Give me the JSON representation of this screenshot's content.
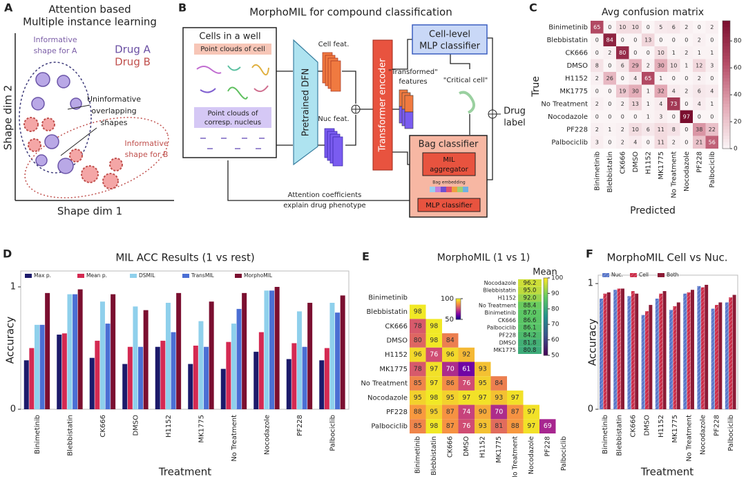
{
  "panel_labels": [
    "A",
    "B",
    "C",
    "D",
    "E",
    "F"
  ],
  "diagram_a": {
    "title_lines": [
      "Attention based",
      "Multiple instance learning"
    ],
    "informative_a": [
      "Informative",
      "shape for A"
    ],
    "drug_a": "Drug A",
    "drug_b": "Drug B",
    "uninformative": [
      "Uninformative",
      "overlapping",
      "shapes"
    ],
    "informative_b": [
      "Informative",
      "shape for B"
    ],
    "y_axis": "Shape dim 2",
    "x_axis": "Shape dim 1"
  },
  "diagram_b": {
    "title": "MorphoMIL for compound classification",
    "cells_box": "Cells in a well",
    "cell_pc": "Point clouds of cell",
    "nuc_pc": [
      "Point clouds of",
      "corresp. nucleus"
    ],
    "dfn": "Pretrained DFN",
    "cell_feat": "Cell feat.",
    "nuc_feat": "Nuc feat.",
    "transformer": "Transformer encoder",
    "transformed": [
      "\"Transformed\"",
      "features"
    ],
    "cell_mlp": [
      "Cell-level",
      "MLP classifier"
    ],
    "critical": "\"Critical cell\"",
    "drug_label": [
      "Drug",
      "label"
    ],
    "bag": "Bag classifier",
    "mil": [
      "MIL",
      "aggregator"
    ],
    "bag_embedding": "Bag embedding",
    "mlp": "MLP classifier",
    "attention": [
      "Attention coefficients",
      "explain drug phenotype"
    ]
  },
  "chart_data": [
    {
      "type": "heatmap",
      "title": "Avg confusion matrix",
      "x_label": "Predicted",
      "y_label": "True",
      "x_categories": [
        "Binimetinib",
        "Blebbistatin",
        "CK666",
        "DMSO",
        "H1152",
        "MK1775",
        "No Treatment",
        "Nocodazole",
        "PF228",
        "Palbociclib"
      ],
      "y_categories": [
        "Binimetinib",
        "Blebbistatin",
        "CK666",
        "DMSO",
        "H1152",
        "MK1775",
        "No Treatment",
        "Nocodazole",
        "PF228",
        "Palbociclib"
      ],
      "values": [
        [
          65,
          0,
          10,
          10,
          0,
          5,
          6,
          2,
          0,
          2
        ],
        [
          0,
          84,
          0,
          0,
          13,
          0,
          0,
          0,
          2,
          0
        ],
        [
          0,
          2,
          80,
          0,
          0,
          10,
          1,
          2,
          1,
          1
        ],
        [
          8,
          0,
          6,
          29,
          2,
          30,
          10,
          1,
          12,
          3
        ],
        [
          2,
          26,
          0,
          4,
          65,
          1,
          0,
          0,
          2,
          0
        ],
        [
          0,
          0,
          19,
          30,
          1,
          32,
          4,
          2,
          6,
          4
        ],
        [
          2,
          0,
          2,
          13,
          1,
          4,
          73,
          0,
          4,
          1
        ],
        [
          0,
          0,
          0,
          0,
          1,
          3,
          0,
          97,
          0,
          0
        ],
        [
          2,
          1,
          2,
          10,
          6,
          11,
          8,
          0,
          38,
          22
        ],
        [
          3,
          0,
          2,
          4,
          0,
          11,
          2,
          0,
          21,
          56
        ]
      ],
      "colorbar_lim": [
        0,
        95
      ],
      "colorbar_ticks": [
        0,
        20,
        40,
        60,
        80
      ]
    },
    {
      "type": "bar",
      "title": "MIL ACC Results (1 vs rest)",
      "x_label": "Treatment",
      "y_label": "Accuracy",
      "categories": [
        "Binimetinib",
        "Blebbistatin",
        "CK666",
        "DMSO",
        "H1152",
        "MK1775",
        "No Treatment",
        "Nocodazole",
        "PF228",
        "Palbociclib"
      ],
      "series": [
        {
          "name": "Max p.",
          "color": "#1c1a6b",
          "values": [
            0.4,
            0.61,
            0.42,
            0.37,
            0.51,
            0.37,
            0.33,
            0.47,
            0.41,
            0.4
          ]
        },
        {
          "name": "Mean p.",
          "color": "#d42a52",
          "values": [
            0.5,
            0.62,
            0.56,
            0.51,
            0.56,
            0.52,
            0.55,
            0.63,
            0.54,
            0.5
          ]
        },
        {
          "name": "DSMIL",
          "color": "#8fd0ec",
          "values": [
            0.69,
            0.94,
            0.88,
            0.84,
            0.87,
            0.72,
            0.7,
            0.97,
            0.8,
            0.87
          ]
        },
        {
          "name": "TransMIL",
          "color": "#4b6fd4",
          "values": [
            0.69,
            0.94,
            0.7,
            0.51,
            0.63,
            0.51,
            0.82,
            0.97,
            0.51,
            0.79
          ]
        },
        {
          "name": "MorphoMIL",
          "color": "#7b0f30",
          "values": [
            0.95,
            0.98,
            0.94,
            0.81,
            0.95,
            0.88,
            0.95,
            1.0,
            0.87,
            0.93
          ]
        }
      ],
      "ylim": [
        0,
        1.13
      ],
      "yticks": [
        0,
        1
      ],
      "legend": "top"
    },
    {
      "type": "triangle_heatmap",
      "title": "MorphoMIL (1 vs 1)",
      "row_categories": [
        "Binimetinib",
        "Blebbistatin",
        "CK666",
        "DMSO",
        "H1152",
        "MK1775",
        "No Treatment",
        "Nocodazole",
        "PF228",
        "Palbociclib"
      ],
      "col_categories": [
        "Binimetinib",
        "Blebbistatin",
        "CK666",
        "DMSO",
        "H1152",
        "MK1775",
        "No Treatment",
        "Nocodazole",
        "PF228",
        "Palbociclib"
      ],
      "values": [
        [],
        [
          98
        ],
        [
          78,
          98
        ],
        [
          80,
          98,
          84
        ],
        [
          96,
          76,
          96,
          92
        ],
        [
          78,
          97,
          70,
          61,
          93
        ],
        [
          85,
          97,
          86,
          76,
          95,
          84
        ],
        [
          95,
          98,
          95,
          97,
          97,
          93,
          97
        ],
        [
          88,
          95,
          87,
          74,
          90,
          70,
          87,
          97
        ],
        [
          85,
          98,
          87,
          76,
          93,
          81,
          88,
          97,
          69
        ]
      ],
      "colorbar_lim": [
        50,
        100
      ],
      "colorbar_ticks": [
        100,
        50
      ],
      "mean": {
        "title": "Mean",
        "categories": [
          "Nocodazole",
          "Blebbistatin",
          "H1152",
          "No Treatment",
          "Binimetinib",
          "CK666",
          "Palbociclib",
          "PF228",
          "DMSO",
          "MK1775"
        ],
        "values": [
          96.2,
          95.0,
          92.0,
          88.4,
          87.0,
          86.6,
          86.1,
          84.2,
          81.8,
          80.8
        ],
        "value_labels": [
          "96.2",
          "95.0",
          "92.0",
          "88.4",
          "87.0",
          "86.6",
          "86.1",
          "84.2",
          "81.8",
          "80.8"
        ],
        "colorbar_lim": [
          50,
          100
        ],
        "colorbar_ticks": [
          100,
          90,
          80,
          70,
          60,
          50
        ]
      }
    },
    {
      "type": "bar",
      "title": "MorphoMIL Cell vs Nuc.",
      "x_label": "Treatment",
      "y_label": "Accuracy",
      "categories": [
        "Binimetinib",
        "Blebbistatin",
        "CK666",
        "DMSO",
        "H1152",
        "MK1775",
        "No Treatment",
        "Nocodazole",
        "PF228",
        "Palbociclib"
      ],
      "series": [
        {
          "name": "Nuc.",
          "color": "#5b78c9",
          "hatch": true,
          "values": [
            0.88,
            0.95,
            0.9,
            0.75,
            0.88,
            0.79,
            0.92,
            0.98,
            0.8,
            0.85
          ]
        },
        {
          "name": "Cell",
          "color": "#cc2e4a",
          "hatch": true,
          "values": [
            0.92,
            0.96,
            0.94,
            0.78,
            0.92,
            0.82,
            0.93,
            0.97,
            0.83,
            0.89
          ]
        },
        {
          "name": "Both",
          "color": "#8b1a35",
          "hatch": false,
          "values": [
            0.93,
            0.96,
            0.92,
            0.83,
            0.94,
            0.85,
            0.95,
            0.99,
            0.85,
            0.91
          ]
        }
      ],
      "ylim": [
        0,
        1.067
      ],
      "yticks": [
        0,
        1
      ],
      "legend": "top"
    }
  ]
}
